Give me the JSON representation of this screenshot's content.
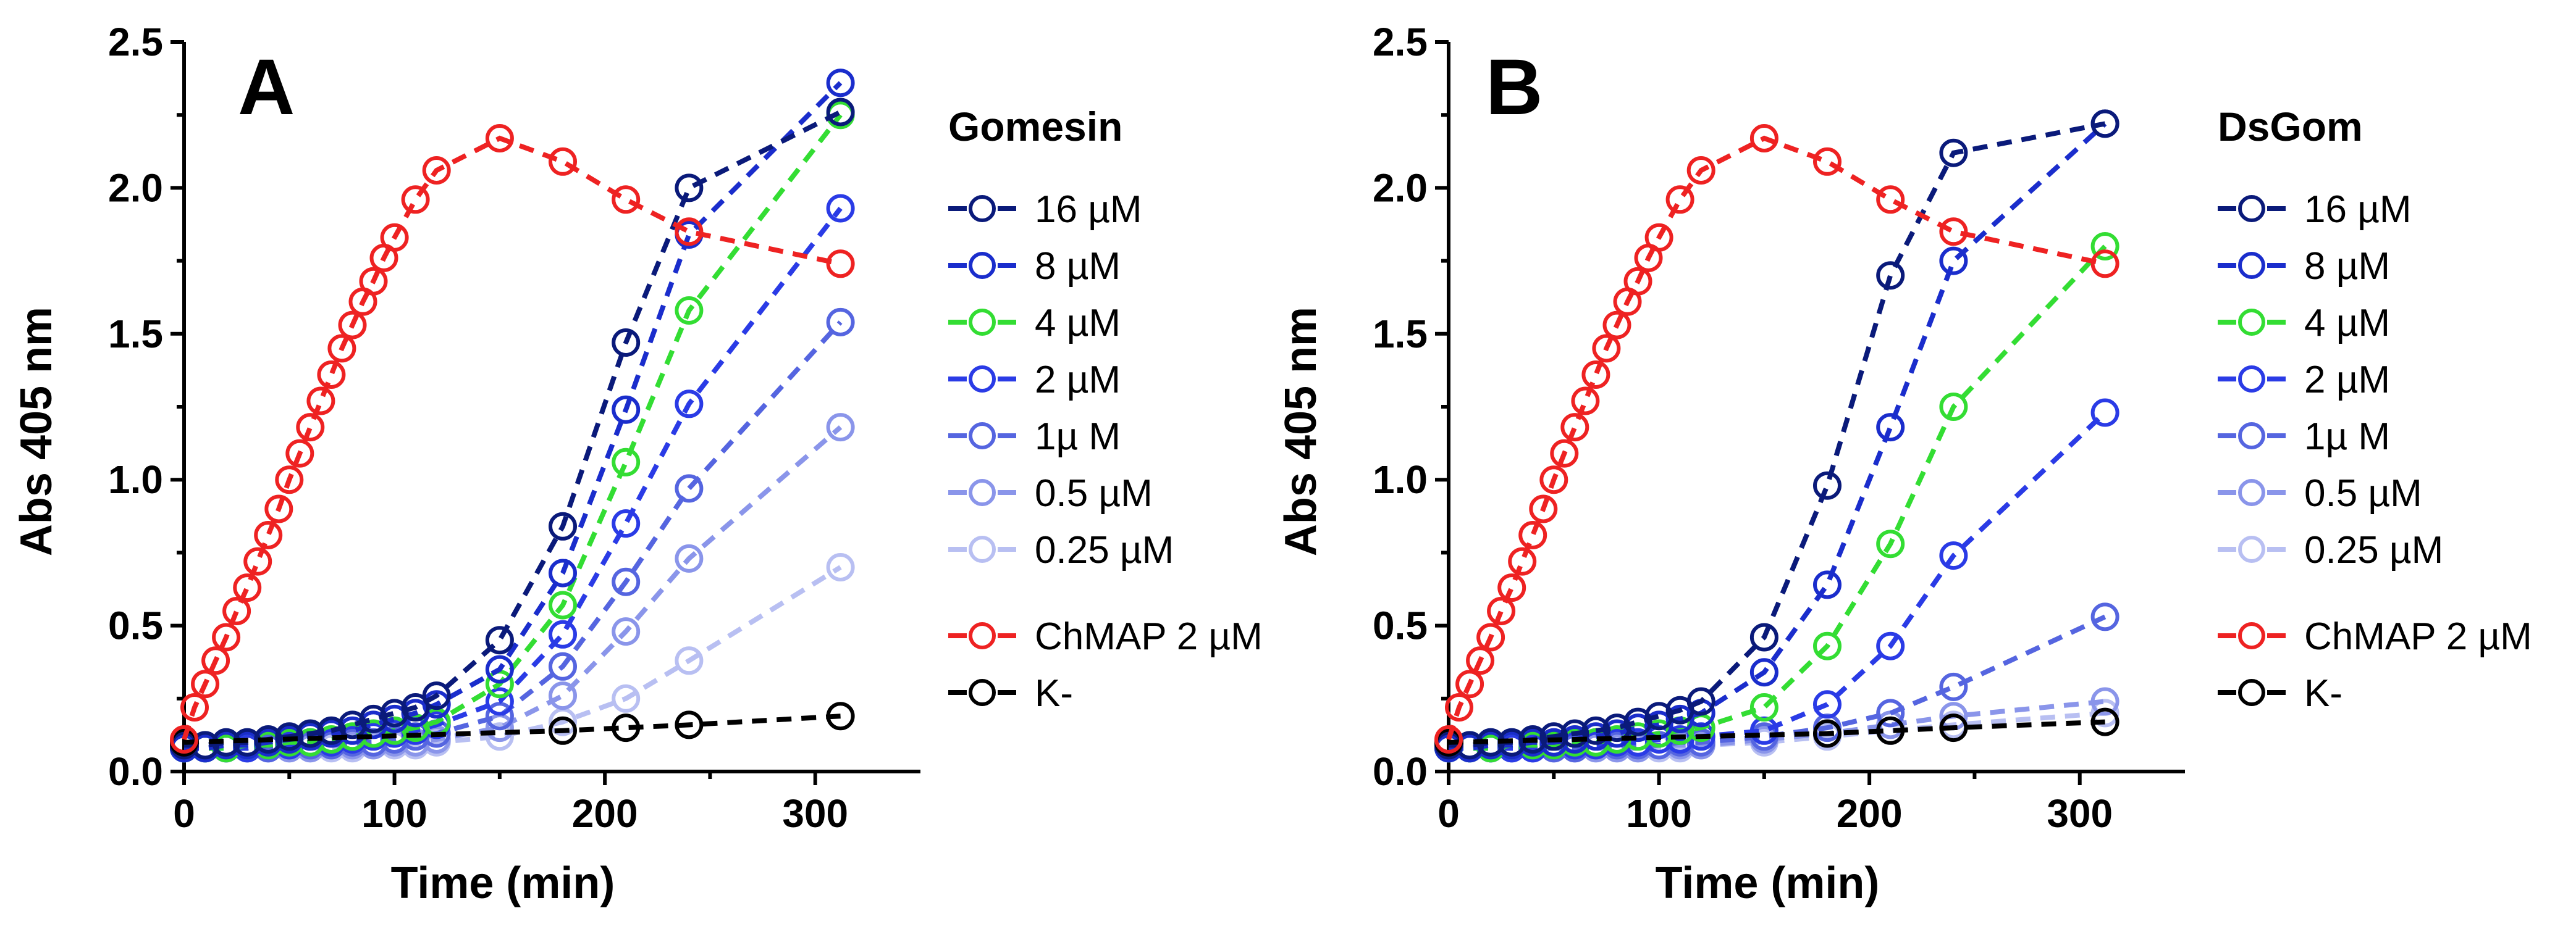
{
  "chart_data": [
    {
      "type": "line",
      "panel_label": "A",
      "xlabel": "Time (min)",
      "ylabel": "Abs 405 nm",
      "xlim": [
        0,
        350
      ],
      "ylim": [
        0,
        2.5
      ],
      "xticks": [
        "0",
        "100",
        "200",
        "300"
      ],
      "yticks": [
        "0.0",
        "0.5",
        "1.0",
        "1.5",
        "2.0",
        "2.5"
      ],
      "grid": false,
      "legend_position": "right",
      "legend_title": "Gomesin",
      "series": [
        {
          "name": "16 µM",
          "color": "#0a1a7a",
          "x": [
            0,
            10,
            20,
            30,
            40,
            50,
            60,
            70,
            80,
            90,
            100,
            110,
            120,
            150,
            180,
            210,
            240,
            312
          ],
          "y": [
            0.09,
            0.09,
            0.1,
            0.1,
            0.11,
            0.12,
            0.13,
            0.14,
            0.16,
            0.18,
            0.2,
            0.22,
            0.26,
            0.45,
            0.84,
            1.47,
            2.0,
            2.26
          ]
        },
        {
          "name": "8 µM",
          "color": "#1a2dcc",
          "x": [
            0,
            10,
            20,
            30,
            40,
            50,
            60,
            70,
            80,
            90,
            100,
            110,
            120,
            150,
            180,
            210,
            240,
            312
          ],
          "y": [
            0.08,
            0.08,
            0.09,
            0.09,
            0.1,
            0.11,
            0.12,
            0.13,
            0.14,
            0.16,
            0.18,
            0.2,
            0.23,
            0.35,
            0.68,
            1.24,
            1.84,
            2.36
          ]
        },
        {
          "name": "4 µM",
          "color": "#33dd33",
          "x": [
            0,
            10,
            20,
            30,
            40,
            50,
            60,
            70,
            80,
            90,
            100,
            110,
            120,
            150,
            180,
            210,
            240,
            312
          ],
          "y": [
            0.08,
            0.08,
            0.08,
            0.09,
            0.09,
            0.1,
            0.1,
            0.11,
            0.12,
            0.13,
            0.14,
            0.15,
            0.17,
            0.3,
            0.57,
            1.06,
            1.58,
            2.25
          ]
        },
        {
          "name": "2 µM",
          "color": "#2a3be6",
          "x": [
            0,
            10,
            20,
            30,
            40,
            50,
            60,
            70,
            80,
            90,
            100,
            110,
            120,
            150,
            180,
            210,
            240,
            312
          ],
          "y": [
            0.08,
            0.08,
            0.08,
            0.08,
            0.09,
            0.09,
            0.1,
            0.1,
            0.11,
            0.12,
            0.13,
            0.14,
            0.16,
            0.24,
            0.47,
            0.85,
            1.26,
            1.93
          ]
        },
        {
          "name": "1µ M",
          "color": "#5565e0",
          "x": [
            0,
            10,
            20,
            30,
            40,
            50,
            60,
            70,
            80,
            90,
            100,
            110,
            120,
            150,
            180,
            210,
            240,
            312
          ],
          "y": [
            0.08,
            0.08,
            0.08,
            0.08,
            0.08,
            0.09,
            0.09,
            0.09,
            0.1,
            0.1,
            0.11,
            0.12,
            0.13,
            0.19,
            0.36,
            0.65,
            0.97,
            1.54
          ]
        },
        {
          "name": "0.5 µM",
          "color": "#8a95ea",
          "x": [
            0,
            10,
            20,
            30,
            40,
            50,
            60,
            70,
            80,
            90,
            100,
            110,
            120,
            150,
            180,
            210,
            240,
            312
          ],
          "y": [
            0.08,
            0.08,
            0.08,
            0.08,
            0.08,
            0.08,
            0.08,
            0.09,
            0.09,
            0.09,
            0.1,
            0.1,
            0.11,
            0.15,
            0.26,
            0.48,
            0.73,
            1.18
          ]
        },
        {
          "name": "0.25 µM",
          "color": "#b8bff2",
          "x": [
            0,
            10,
            20,
            30,
            40,
            50,
            60,
            70,
            80,
            90,
            100,
            110,
            120,
            150,
            180,
            210,
            240,
            312
          ],
          "y": [
            0.08,
            0.08,
            0.08,
            0.08,
            0.08,
            0.08,
            0.08,
            0.08,
            0.08,
            0.09,
            0.09,
            0.09,
            0.1,
            0.12,
            0.17,
            0.25,
            0.38,
            0.7
          ]
        },
        {
          "name": "ChMAP 2 µM",
          "color": "#ee2222",
          "x": [
            0,
            5,
            10,
            15,
            20,
            25,
            30,
            35,
            40,
            45,
            50,
            55,
            60,
            65,
            70,
            75,
            80,
            85,
            90,
            95,
            100,
            110,
            120,
            150,
            180,
            210,
            240,
            312
          ],
          "y": [
            0.11,
            0.22,
            0.3,
            0.38,
            0.46,
            0.55,
            0.63,
            0.72,
            0.81,
            0.9,
            1.0,
            1.09,
            1.18,
            1.27,
            1.36,
            1.45,
            1.53,
            1.61,
            1.68,
            1.76,
            1.83,
            1.96,
            2.06,
            2.17,
            2.09,
            1.96,
            1.85,
            1.74
          ]
        },
        {
          "name": "K-",
          "color": "#000000",
          "x": [
            0,
            180,
            210,
            240,
            312
          ],
          "y": [
            0.1,
            0.14,
            0.15,
            0.16,
            0.19
          ]
        }
      ]
    },
    {
      "type": "line",
      "panel_label": "B",
      "xlabel": "Time (min)",
      "ylabel": "Abs 405 nm",
      "xlim": [
        0,
        350
      ],
      "ylim": [
        0,
        2.5
      ],
      "xticks": [
        "0",
        "100",
        "200",
        "300"
      ],
      "yticks": [
        "0.0",
        "0.5",
        "1.0",
        "1.5",
        "2.0",
        "2.5"
      ],
      "grid": false,
      "legend_position": "right",
      "legend_title": "DsGom",
      "series": [
        {
          "name": "16 µM",
          "color": "#0a1a7a",
          "x": [
            0,
            10,
            20,
            30,
            40,
            50,
            60,
            70,
            80,
            90,
            100,
            110,
            120,
            150,
            180,
            210,
            240,
            312
          ],
          "y": [
            0.09,
            0.09,
            0.1,
            0.1,
            0.11,
            0.12,
            0.13,
            0.14,
            0.15,
            0.17,
            0.19,
            0.21,
            0.24,
            0.46,
            0.98,
            1.7,
            2.12,
            2.22
          ]
        },
        {
          "name": "8 µM",
          "color": "#1a2dcc",
          "x": [
            0,
            10,
            20,
            30,
            40,
            50,
            60,
            70,
            80,
            90,
            100,
            110,
            120,
            150,
            180,
            210,
            240,
            312
          ],
          "y": [
            0.08,
            0.08,
            0.09,
            0.09,
            0.1,
            0.1,
            0.11,
            0.12,
            0.13,
            0.15,
            0.16,
            0.18,
            0.2,
            0.34,
            0.64,
            1.18,
            1.75,
            2.22
          ]
        },
        {
          "name": "4 µM",
          "color": "#33dd33",
          "x": [
            0,
            10,
            20,
            30,
            40,
            50,
            60,
            70,
            80,
            90,
            100,
            110,
            120,
            150,
            180,
            210,
            240,
            312
          ],
          "y": [
            0.08,
            0.08,
            0.08,
            0.09,
            0.09,
            0.09,
            0.1,
            0.1,
            0.11,
            0.12,
            0.13,
            0.14,
            0.15,
            0.22,
            0.43,
            0.78,
            1.25,
            1.8
          ]
        },
        {
          "name": "2 µM",
          "color": "#2a3be6",
          "x": [
            0,
            10,
            20,
            30,
            40,
            50,
            60,
            70,
            80,
            90,
            100,
            110,
            120,
            150,
            180,
            210,
            240,
            312
          ],
          "y": [
            0.08,
            0.08,
            0.08,
            0.08,
            0.08,
            0.09,
            0.09,
            0.09,
            0.1,
            0.1,
            0.11,
            0.11,
            0.12,
            0.14,
            0.23,
            0.43,
            0.74,
            1.23
          ]
        },
        {
          "name": "1µ M",
          "color": "#5565e0",
          "x": [
            0,
            10,
            20,
            30,
            40,
            50,
            60,
            70,
            80,
            90,
            100,
            110,
            120,
            150,
            180,
            210,
            240,
            312
          ],
          "y": [
            0.08,
            0.08,
            0.08,
            0.08,
            0.08,
            0.08,
            0.08,
            0.09,
            0.09,
            0.09,
            0.09,
            0.1,
            0.1,
            0.12,
            0.15,
            0.2,
            0.29,
            0.53
          ]
        },
        {
          "name": "0.5 µM",
          "color": "#8a95ea",
          "x": [
            0,
            10,
            20,
            30,
            40,
            50,
            60,
            70,
            80,
            90,
            100,
            110,
            120,
            150,
            180,
            210,
            240,
            312
          ],
          "y": [
            0.08,
            0.08,
            0.08,
            0.08,
            0.08,
            0.08,
            0.08,
            0.08,
            0.08,
            0.08,
            0.09,
            0.09,
            0.09,
            0.11,
            0.13,
            0.16,
            0.19,
            0.24
          ]
        },
        {
          "name": "0.25 µM",
          "color": "#b8bff2",
          "x": [
            0,
            10,
            20,
            30,
            40,
            50,
            60,
            70,
            80,
            90,
            100,
            110,
            120,
            150,
            180,
            210,
            240,
            312
          ],
          "y": [
            0.08,
            0.08,
            0.08,
            0.08,
            0.08,
            0.08,
            0.08,
            0.08,
            0.08,
            0.08,
            0.08,
            0.08,
            0.09,
            0.1,
            0.12,
            0.14,
            0.16,
            0.2
          ]
        },
        {
          "name": "ChMAP 2 µM",
          "color": "#ee2222",
          "x": [
            0,
            5,
            10,
            15,
            20,
            25,
            30,
            35,
            40,
            45,
            50,
            55,
            60,
            65,
            70,
            75,
            80,
            85,
            90,
            95,
            100,
            110,
            120,
            150,
            180,
            210,
            240,
            312
          ],
          "y": [
            0.11,
            0.22,
            0.3,
            0.38,
            0.46,
            0.55,
            0.63,
            0.72,
            0.81,
            0.9,
            1.0,
            1.09,
            1.18,
            1.27,
            1.36,
            1.45,
            1.53,
            1.61,
            1.68,
            1.76,
            1.83,
            1.96,
            2.06,
            2.17,
            2.09,
            1.96,
            1.85,
            1.74
          ]
        },
        {
          "name": "K-",
          "color": "#000000",
          "x": [
            0,
            180,
            210,
            240,
            312
          ],
          "y": [
            0.1,
            0.13,
            0.14,
            0.15,
            0.17
          ]
        }
      ]
    }
  ]
}
